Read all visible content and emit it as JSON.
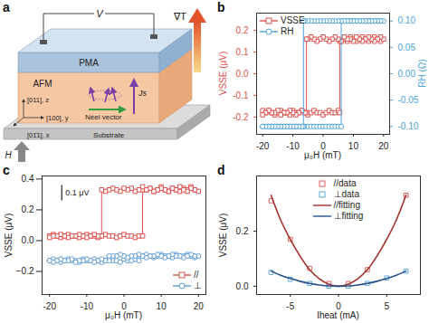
{
  "diagram": {
    "panel_label": "a",
    "voltage": "V",
    "layers": [
      "PMA",
      "AFM",
      "Substrate"
    ],
    "gradient": "∇T",
    "field": "H",
    "spin_current": "Js",
    "neel_vector": "Néel vector",
    "axes": [
      "[011], z",
      "[100], y",
      "[01̄1], x"
    ]
  },
  "chart_data": [
    {
      "panel_label": "b",
      "type": "line",
      "x_label": "μ₀H (mT)",
      "y_label": "VSSE (μV)",
      "y2_label": "RH (Ω)",
      "xlim": [
        -22,
        22
      ],
      "xticks": [
        -20,
        -10,
        0,
        10,
        20
      ],
      "ylim": [
        -0.28,
        0.28
      ],
      "yticks": [
        -0.2,
        -0.1,
        {
          "value": 0,
          "label": "0.0"
        },
        0.1,
        0.2
      ],
      "y2lim": [
        -0.115,
        0.115
      ],
      "y2ticks": [
        {
          "value": -0.1,
          "label": "-0.10"
        },
        -0.05,
        {
          "value": 0,
          "label": "0.00"
        },
        0.05,
        {
          "value": 0.1,
          "label": "0.10"
        }
      ],
      "legend": "top-left",
      "series": [
        {
          "name": "VSSE",
          "color": "#e0504d",
          "marker": "square",
          "x": [
            -20,
            -19,
            -18,
            -17,
            -16,
            -15,
            -14,
            -13,
            -12,
            -11,
            -10,
            -9,
            -8,
            -7,
            -6,
            -5,
            -4,
            -3,
            -2,
            -1,
            0,
            1,
            2,
            3,
            4,
            5,
            5.5,
            5.5,
            6,
            7,
            8,
            9,
            10,
            11,
            12,
            13,
            14,
            15,
            16,
            17,
            18,
            19,
            20,
            19,
            18,
            17,
            16,
            15,
            14,
            13,
            12,
            11,
            10,
            9,
            8,
            7,
            6,
            5,
            4,
            3,
            2,
            1,
            0,
            -1,
            -2,
            -3,
            -4,
            -5,
            -5.5,
            -5.5,
            -6,
            -7,
            -8,
            -9,
            -10,
            -11,
            -12,
            -13,
            -14,
            -15,
            -16,
            -17,
            -18,
            -19,
            -20
          ],
          "values": [
            -0.17,
            -0.18,
            -0.17,
            -0.18,
            -0.19,
            -0.18,
            -0.17,
            -0.18,
            -0.18,
            -0.19,
            -0.17,
            -0.18,
            -0.18,
            -0.17,
            -0.18,
            -0.19,
            -0.18,
            -0.17,
            -0.18,
            -0.18,
            -0.19,
            -0.18,
            -0.17,
            -0.18,
            -0.18,
            -0.17,
            -0.18,
            0.15,
            0.15,
            0.16,
            0.15,
            0.17,
            0.16,
            0.15,
            0.16,
            0.17,
            0.16,
            0.15,
            0.16,
            0.17,
            0.16,
            0.15,
            0.16,
            0.17,
            0.16,
            0.15,
            0.16,
            0.17,
            0.16,
            0.15,
            0.16,
            0.17,
            0.15,
            0.16,
            0.16,
            0.17,
            0.15,
            0.16,
            0.17,
            0.16,
            0.15,
            0.16,
            0.17,
            0.16,
            0.15,
            0.16,
            0.17,
            0.16,
            0.16,
            -0.18,
            -0.18,
            -0.17,
            -0.18,
            -0.19,
            -0.18,
            -0.17,
            -0.18,
            -0.18,
            -0.19,
            -0.17,
            -0.18,
            -0.18,
            -0.17,
            -0.18,
            -0.19
          ]
        },
        {
          "name": "RH",
          "color": "#4fa3d9",
          "marker": "circle",
          "axis": "y2",
          "x": [
            -20,
            -19,
            -18,
            -17,
            -16,
            -15,
            -14,
            -13,
            -12,
            -11,
            -10,
            -9,
            -8,
            -7,
            -6,
            -5,
            -4,
            -3,
            -2,
            -1,
            0,
            1,
            2,
            3,
            4,
            5,
            6,
            6,
            7,
            8,
            9,
            10,
            11,
            12,
            13,
            14,
            15,
            16,
            17,
            18,
            19,
            20,
            19,
            18,
            17,
            16,
            15,
            14,
            13,
            12,
            11,
            10,
            9,
            8,
            7,
            6,
            5,
            4,
            3,
            2,
            1,
            0,
            -1,
            -2,
            -3,
            -4,
            -5,
            -6,
            -6.5,
            -6.5,
            -7,
            -8,
            -9,
            -10,
            -11,
            -12,
            -13,
            -14,
            -15,
            -16,
            -17,
            -18,
            -19,
            -20
          ],
          "values": [
            -0.1,
            -0.1,
            -0.1,
            -0.1,
            -0.1,
            -0.1,
            -0.1,
            -0.1,
            -0.1,
            -0.1,
            -0.1,
            -0.1,
            -0.1,
            -0.1,
            -0.1,
            -0.1,
            -0.1,
            -0.1,
            -0.1,
            -0.1,
            -0.1,
            -0.1,
            -0.1,
            -0.1,
            -0.1,
            -0.1,
            -0.1,
            0.1,
            0.1,
            0.1,
            0.1,
            0.1,
            0.1,
            0.1,
            0.1,
            0.1,
            0.1,
            0.1,
            0.1,
            0.1,
            0.1,
            0.1,
            0.1,
            0.1,
            0.1,
            0.1,
            0.1,
            0.1,
            0.1,
            0.1,
            0.1,
            0.1,
            0.1,
            0.1,
            0.1,
            0.1,
            0.1,
            0.1,
            0.1,
            0.1,
            0.1,
            0.1,
            0.1,
            0.1,
            0.1,
            0.1,
            0.1,
            0.1,
            0.1,
            -0.1,
            -0.1,
            -0.1,
            -0.1,
            -0.1,
            -0.1,
            -0.1,
            -0.1,
            -0.1,
            -0.1,
            -0.1,
            -0.1,
            -0.1,
            -0.1,
            -0.1
          ]
        }
      ]
    },
    {
      "panel_label": "c",
      "type": "line",
      "x_label": "μ₀H (mT)",
      "y_label": "VSSE (μV)",
      "xlim": [
        -22,
        22
      ],
      "xticks": [
        -20,
        -10,
        0,
        10,
        20
      ],
      "ylim": [
        -0.35,
        0.42
      ],
      "tick_labels": "x",
      "legend": "bottom-right",
      "scale_bar": {
        "value": 0.1,
        "label": "0.1 μV"
      },
      "series": [
        {
          "name": "//",
          "color": "#e0504d",
          "marker": "square",
          "x": [
            -20,
            -19,
            -18,
            -17,
            -16,
            -15,
            -14,
            -13,
            -12,
            -11,
            -10,
            -9,
            -8,
            -7,
            -6,
            -5,
            -4,
            -3,
            -2,
            -1,
            0,
            1,
            2,
            3,
            4,
            5,
            5,
            6,
            7,
            8,
            9,
            10,
            11,
            12,
            13,
            14,
            15,
            16,
            17,
            18,
            19,
            20,
            19,
            18,
            17,
            16,
            15,
            14,
            13,
            12,
            11,
            10,
            9,
            8,
            7,
            6,
            5,
            4,
            3,
            2,
            1,
            0,
            -1,
            -2,
            -3,
            -4,
            -5,
            -6,
            -6,
            -7,
            -8,
            -9,
            -10,
            -11,
            -12,
            -13,
            -14,
            -15,
            -16,
            -17,
            -18,
            -19,
            -20
          ],
          "values": [
            0.03,
            0.04,
            0.03,
            0.02,
            0.03,
            0.04,
            0.03,
            0.03,
            0.02,
            0.03,
            0.04,
            0.03,
            0.03,
            0.02,
            0.03,
            0.04,
            0.03,
            0.03,
            0.02,
            0.03,
            0.04,
            0.03,
            0.03,
            0.02,
            0.03,
            0.03,
            0.33,
            0.33,
            0.34,
            0.32,
            0.33,
            0.35,
            0.33,
            0.32,
            0.34,
            0.33,
            0.32,
            0.34,
            0.33,
            0.35,
            0.33,
            0.32,
            0.33,
            0.34,
            0.32,
            0.33,
            0.35,
            0.33,
            0.34,
            0.32,
            0.33,
            0.34,
            0.33,
            0.32,
            0.34,
            0.33,
            0.35,
            0.33,
            0.32,
            0.34,
            0.33,
            0.34,
            0.32,
            0.33,
            0.34,
            0.33,
            0.32,
            0.33,
            0.03,
            0.03,
            0.04,
            0.03,
            0.02,
            0.03,
            0.04,
            0.03,
            0.03,
            0.02,
            0.03,
            0.04,
            0.03,
            0.03,
            0.02
          ]
        },
        {
          "name": "⊥",
          "color": "#5b9bd5",
          "marker": "circle",
          "x": [
            -20,
            -19,
            -18,
            -17,
            -16,
            -15,
            -14,
            -13,
            -12,
            -11,
            -10,
            -9,
            -8,
            -7,
            -6,
            -5,
            -4,
            -3,
            -2,
            -1,
            0,
            1,
            2,
            3,
            4,
            4,
            5,
            6,
            7,
            8,
            9,
            10,
            11,
            12,
            13,
            14,
            15,
            16,
            17,
            18,
            19,
            20,
            19,
            18,
            17,
            16,
            15,
            14,
            13,
            12,
            11,
            10,
            9,
            8,
            7,
            6,
            5,
            4,
            3,
            2,
            1,
            0,
            -1,
            -2,
            -3,
            -4,
            -4,
            -5,
            -6,
            -7,
            -8,
            -9,
            -10,
            -11,
            -12,
            -13,
            -14,
            -15,
            -16,
            -17,
            -18,
            -19,
            -20
          ],
          "values": [
            -0.13,
            -0.12,
            -0.13,
            -0.14,
            -0.13,
            -0.12,
            -0.13,
            -0.13,
            -0.14,
            -0.12,
            -0.13,
            -0.13,
            -0.12,
            -0.13,
            -0.14,
            -0.13,
            -0.12,
            -0.13,
            -0.13,
            -0.14,
            -0.12,
            -0.13,
            -0.13,
            -0.12,
            -0.13,
            -0.1,
            -0.1,
            -0.09,
            -0.1,
            -0.11,
            -0.1,
            -0.09,
            -0.1,
            -0.1,
            -0.11,
            -0.09,
            -0.1,
            -0.1,
            -0.09,
            -0.1,
            -0.11,
            -0.1,
            -0.1,
            -0.09,
            -0.1,
            -0.11,
            -0.1,
            -0.1,
            -0.09,
            -0.1,
            -0.11,
            -0.1,
            -0.09,
            -0.1,
            -0.1,
            -0.11,
            -0.1,
            -0.09,
            -0.1,
            -0.1,
            -0.11,
            -0.1,
            -0.09,
            -0.1,
            -0.1,
            -0.1,
            -0.13,
            -0.13,
            -0.12,
            -0.13,
            -0.14,
            -0.13,
            -0.12,
            -0.13,
            -0.13,
            -0.14,
            -0.12,
            -0.13,
            -0.13,
            -0.12,
            -0.13,
            -0.14,
            -0.13
          ]
        }
      ]
    },
    {
      "panel_label": "d",
      "type": "scatter",
      "x_label": "Iheat (mA)",
      "y_label": "VSSE (μV)",
      "xlim": [
        -8.5,
        8.5
      ],
      "xticks": [
        -5,
        0,
        5
      ],
      "ylim": [
        -0.03,
        0.4
      ],
      "yticks": [
        {
          "value": 0,
          "label": "0.0"
        },
        0.2
      ],
      "legend": "top",
      "series": [
        {
          "name": "//data",
          "type": "scatter",
          "color": "#e06060",
          "marker": "square",
          "x": [
            -7,
            -5,
            -3,
            -1,
            1,
            3,
            7
          ],
          "values": [
            0.31,
            0.17,
            0.065,
            0.01,
            0.01,
            0.06,
            0.33
          ]
        },
        {
          "name": "⊥data",
          "type": "scatter",
          "color": "#5fa8d8",
          "marker": "square",
          "x": [
            -7,
            -5,
            -3,
            -1,
            1,
            3,
            5,
            7
          ],
          "values": [
            0.05,
            0.025,
            0.01,
            0,
            0,
            0.01,
            0.03,
            0.055
          ]
        },
        {
          "name": "//fitting",
          "type": "line",
          "color": "#a3302a",
          "x": [
            -7,
            -6,
            -5,
            -4,
            -3,
            -2,
            -1,
            0,
            1,
            2,
            3,
            4,
            5,
            6,
            7
          ],
          "values": [
            0.33,
            0.24,
            0.17,
            0.11,
            0.06,
            0.027,
            0.007,
            0,
            0.007,
            0.027,
            0.06,
            0.11,
            0.17,
            0.24,
            0.33
          ]
        },
        {
          "name": "⊥fitting",
          "type": "line",
          "color": "#24508f",
          "x": [
            -7,
            -6,
            -5,
            -4,
            -3,
            -2,
            -1,
            0,
            1,
            2,
            3,
            4,
            5,
            6,
            7
          ],
          "values": [
            0.055,
            0.04,
            0.028,
            0.018,
            0.01,
            0.0045,
            0.001,
            0,
            0.001,
            0.0045,
            0.01,
            0.018,
            0.028,
            0.04,
            0.055
          ]
        }
      ]
    }
  ]
}
